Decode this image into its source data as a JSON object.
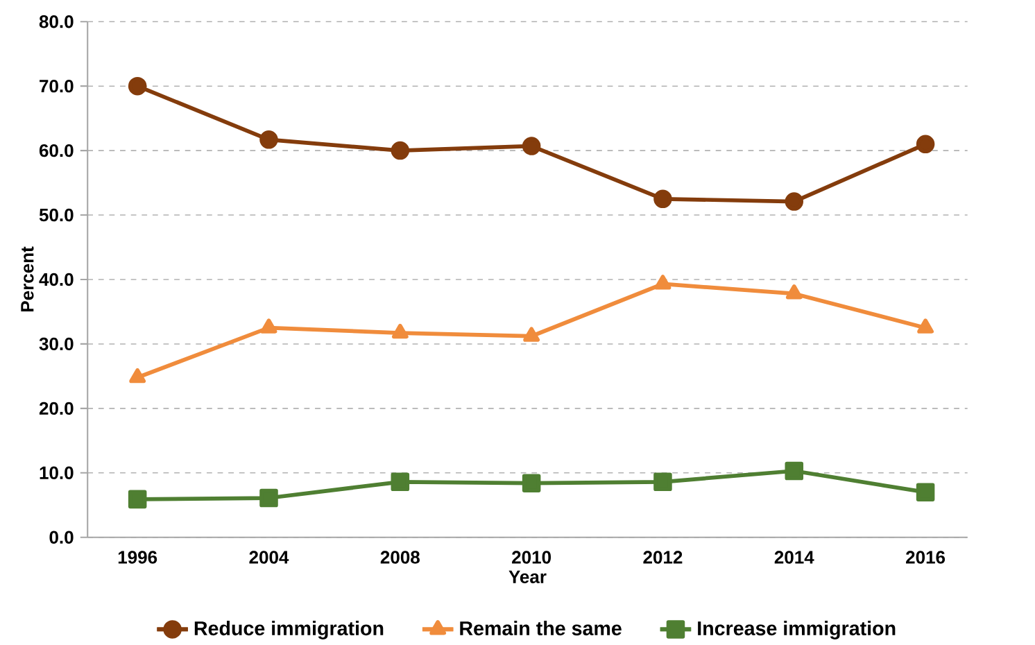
{
  "chart_data": {
    "type": "line",
    "xlabel": "Year",
    "ylabel": "Percent",
    "categories": [
      "1996",
      "2004",
      "2008",
      "2010",
      "2012",
      "2014",
      "2016"
    ],
    "series": [
      {
        "name": "Reduce immigration",
        "color": "#843c0c",
        "marker": "circle",
        "values": [
          70.0,
          61.7,
          60.0,
          60.7,
          52.5,
          52.1,
          61.0
        ]
      },
      {
        "name": "Remain the same",
        "color": "#f08c3c",
        "marker": "triangle",
        "values": [
          24.8,
          32.5,
          31.7,
          31.2,
          39.3,
          37.8,
          32.5
        ]
      },
      {
        "name": "Increase immigration",
        "color": "#4f7f32",
        "marker": "square",
        "values": [
          5.9,
          6.1,
          8.6,
          8.4,
          8.6,
          10.3,
          7.0
        ]
      }
    ],
    "ylim": [
      0,
      80
    ],
    "yticks": [
      {
        "value": 0,
        "label": "0.0"
      },
      {
        "value": 10,
        "label": "10.0"
      },
      {
        "value": 20,
        "label": "20.0"
      },
      {
        "value": 30,
        "label": "30.0"
      },
      {
        "value": 40,
        "label": "40.0"
      },
      {
        "value": 50,
        "label": "50.0"
      },
      {
        "value": 60,
        "label": "60.0"
      },
      {
        "value": 70,
        "label": "70.0"
      },
      {
        "value": 80,
        "label": "80.0"
      }
    ],
    "grid": "y",
    "legend": "bottom",
    "line_style": "solid"
  }
}
